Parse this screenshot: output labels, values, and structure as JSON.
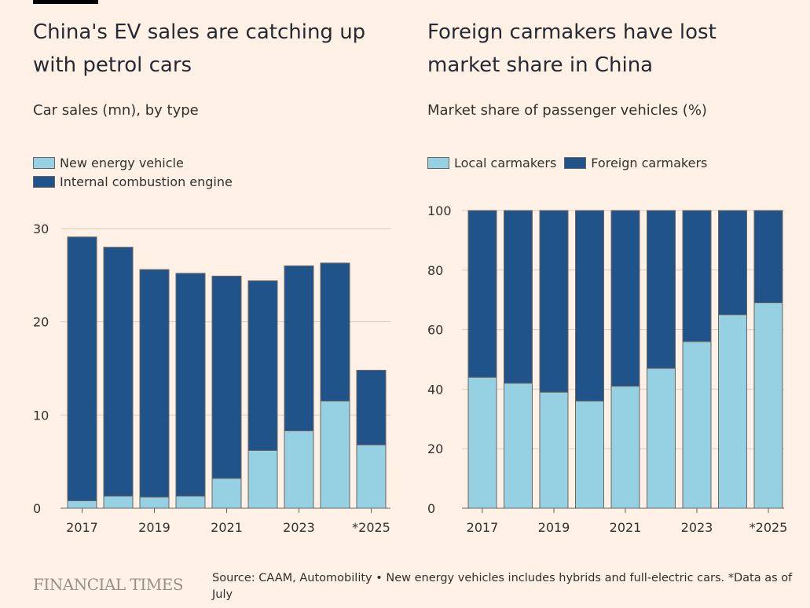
{
  "brand": "FINANCIAL TIMES",
  "source": "Source: CAAM, Automobility • New energy vehicles includes hybrids and full-electric cars. *Data as of July",
  "colors": {
    "background": "#fff1e5",
    "light": "#96d1e3",
    "dark": "#205389",
    "grid": "#d9cbc0"
  },
  "chart_data": [
    {
      "type": "bar",
      "stacked": true,
      "title": "China's EV sales are catching up with petrol cars",
      "subtitle": "Car sales (mn), by type",
      "categories": [
        "2017",
        "2018",
        "2019",
        "2020",
        "2021",
        "2022",
        "2023",
        "2024",
        "*2025"
      ],
      "tick_labels": [
        "2017",
        "",
        "2019",
        "",
        "2021",
        "",
        "2023",
        "",
        "*2025"
      ],
      "y_ticks": [
        "0",
        "10",
        "20",
        "30"
      ],
      "ylim": [
        0,
        30
      ],
      "grid": true,
      "legend_placement": "top-left",
      "series": [
        {
          "name": "New energy vehicle",
          "color": "#96d1e3",
          "values": [
            0.8,
            1.3,
            1.2,
            1.3,
            3.2,
            6.2,
            8.3,
            11.5,
            6.8
          ]
        },
        {
          "name": "Internal combustion engine",
          "color": "#205389",
          "values": [
            28.3,
            26.7,
            24.4,
            23.9,
            21.7,
            18.2,
            17.7,
            14.8,
            8.0
          ]
        }
      ]
    },
    {
      "type": "bar",
      "stacked": true,
      "title": "Foreign carmakers have lost market share in China",
      "subtitle": "Market share of passenger vehicles (%)",
      "categories": [
        "2017",
        "2018",
        "2019",
        "2020",
        "2021",
        "2022",
        "2023",
        "2024",
        "*2025"
      ],
      "tick_labels": [
        "2017",
        "",
        "2019",
        "",
        "2021",
        "",
        "2023",
        "",
        "*2025"
      ],
      "y_ticks": [
        "0",
        "20",
        "40",
        "60",
        "80",
        "100"
      ],
      "ylim": [
        0,
        100
      ],
      "grid": true,
      "legend_placement": "top-left",
      "series": [
        {
          "name": "Local carmakers",
          "color": "#96d1e3",
          "values": [
            44,
            42,
            39,
            36,
            41,
            47,
            56,
            65,
            69
          ]
        },
        {
          "name": "Foreign carmakers",
          "color": "#205389",
          "values": [
            56,
            58,
            61,
            64,
            59,
            53,
            44,
            35,
            31
          ]
        }
      ]
    }
  ]
}
